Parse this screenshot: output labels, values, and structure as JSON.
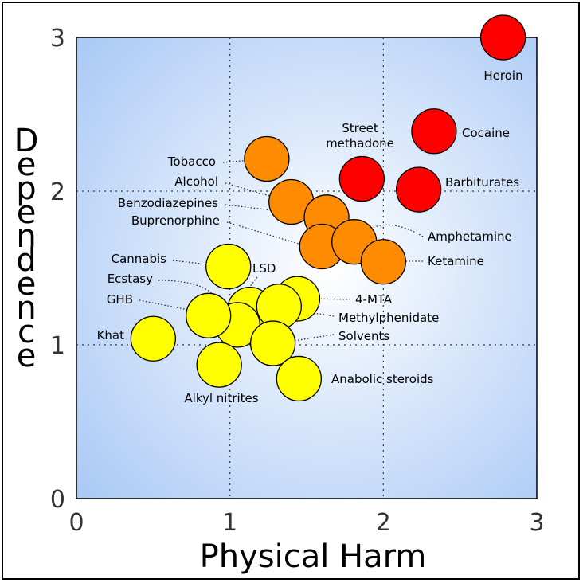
{
  "chart_data": {
    "type": "scatter",
    "xlabel": "Physical Harm",
    "ylabel": "Dependence",
    "xlim": [
      0,
      3
    ],
    "ylim": [
      0,
      3
    ],
    "xticks": [
      "0",
      "1",
      "2",
      "3"
    ],
    "yticks": [
      "0",
      "1",
      "2",
      "3"
    ],
    "grid": "dotted lines at 1 and 2",
    "colors": {
      "red": "#ff0000",
      "orange": "#ff8c00",
      "yellow": "#ffff00",
      "background_center": "#ffffff",
      "background_edge": "#a8c8f5"
    },
    "points": [
      {
        "label": "Heroin",
        "x": 2.78,
        "y": 3.0,
        "color": "red"
      },
      {
        "label": "Cocaine",
        "x": 2.33,
        "y": 2.39,
        "color": "red"
      },
      {
        "label": "Street\nmethadone",
        "x": 1.86,
        "y": 2.08,
        "color": "red"
      },
      {
        "label": "Barbiturates",
        "x": 2.23,
        "y": 2.01,
        "color": "red"
      },
      {
        "label": "Tobacco",
        "x": 1.24,
        "y": 2.21,
        "color": "orange"
      },
      {
        "label": "Alcohol",
        "x": 1.4,
        "y": 1.93,
        "color": "orange"
      },
      {
        "label": "Benzodiazepines",
        "x": 1.63,
        "y": 1.83,
        "color": "orange"
      },
      {
        "label": "Buprenorphine",
        "x": 1.6,
        "y": 1.64,
        "color": "orange"
      },
      {
        "label": "Amphetamine",
        "x": 1.81,
        "y": 1.67,
        "color": "orange"
      },
      {
        "label": "Ketamine",
        "x": 2.0,
        "y": 1.54,
        "color": "orange"
      },
      {
        "label": "Cannabis",
        "x": 0.99,
        "y": 1.51,
        "color": "yellow"
      },
      {
        "label": "LSD",
        "x": 1.13,
        "y": 1.23,
        "color": "yellow"
      },
      {
        "label": "4-MTA",
        "x": 1.44,
        "y": 1.3,
        "color": "yellow"
      },
      {
        "label": "Methylphenidate",
        "x": 1.32,
        "y": 1.25,
        "color": "yellow"
      },
      {
        "label": "Ecstasy",
        "x": 1.05,
        "y": 1.13,
        "color": "yellow"
      },
      {
        "label": "GHB",
        "x": 0.86,
        "y": 1.19,
        "color": "yellow"
      },
      {
        "label": "Solvents",
        "x": 1.28,
        "y": 1.01,
        "color": "yellow"
      },
      {
        "label": "Khat",
        "x": 0.5,
        "y": 1.04,
        "color": "yellow"
      },
      {
        "label": "Alkyl nitrites",
        "x": 0.93,
        "y": 0.87,
        "color": "yellow"
      },
      {
        "label": "Anabolic steroids",
        "x": 1.45,
        "y": 0.78,
        "color": "yellow"
      }
    ]
  }
}
